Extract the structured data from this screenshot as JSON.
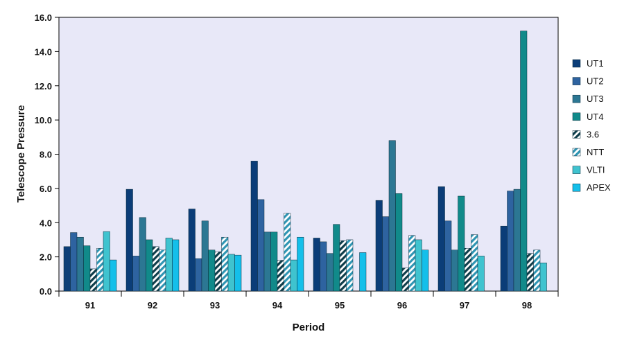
{
  "chart_data": {
    "type": "bar",
    "title": "",
    "xlabel": "Period",
    "ylabel": "Telescope Pressure",
    "ylim": [
      0,
      16
    ],
    "ytick_step": 2,
    "ytick_decimals": 1,
    "grid": false,
    "legend_position": "right",
    "plot_background": "#e8e8f8",
    "categories": [
      "91",
      "92",
      "93",
      "94",
      "95",
      "96",
      "97",
      "98"
    ],
    "series": [
      {
        "name": "UT1",
        "color": "#0b3d78",
        "pattern": "solid",
        "values": [
          2.6,
          5.95,
          4.8,
          7.6,
          3.1,
          5.3,
          6.1,
          3.8
        ]
      },
      {
        "name": "UT2",
        "color": "#2e63a0",
        "pattern": "solid",
        "values": [
          3.42,
          2.05,
          1.9,
          5.35,
          2.88,
          4.35,
          4.1,
          5.85
        ]
      },
      {
        "name": "UT3",
        "color": "#2c7793",
        "pattern": "solid",
        "values": [
          3.15,
          4.3,
          4.1,
          3.45,
          2.2,
          8.8,
          2.4,
          5.95
        ]
      },
      {
        "name": "UT4",
        "color": "#118a8a",
        "pattern": "solid",
        "values": [
          2.65,
          3.0,
          2.4,
          3.45,
          3.9,
          5.7,
          5.55,
          15.2
        ]
      },
      {
        "name": "3.6",
        "color": "#0e3d4a",
        "pattern": "hatched",
        "values": [
          1.3,
          2.6,
          2.3,
          1.8,
          2.95,
          1.35,
          2.5,
          2.2
        ]
      },
      {
        "name": "NTT",
        "color": "#2f95b3",
        "pattern": "hatched",
        "values": [
          2.5,
          2.4,
          3.15,
          4.55,
          3.0,
          3.25,
          3.3,
          2.4
        ]
      },
      {
        "name": "VLTI",
        "color": "#3fc3cf",
        "pattern": "solid",
        "values": [
          3.48,
          3.1,
          2.15,
          1.82,
          0.0,
          3.0,
          2.05,
          1.65
        ]
      },
      {
        "name": "APEX",
        "color": "#14bfea",
        "pattern": "solid",
        "values": [
          1.82,
          3.0,
          2.1,
          3.15,
          2.25,
          2.4,
          0.0,
          0.0
        ]
      }
    ]
  }
}
